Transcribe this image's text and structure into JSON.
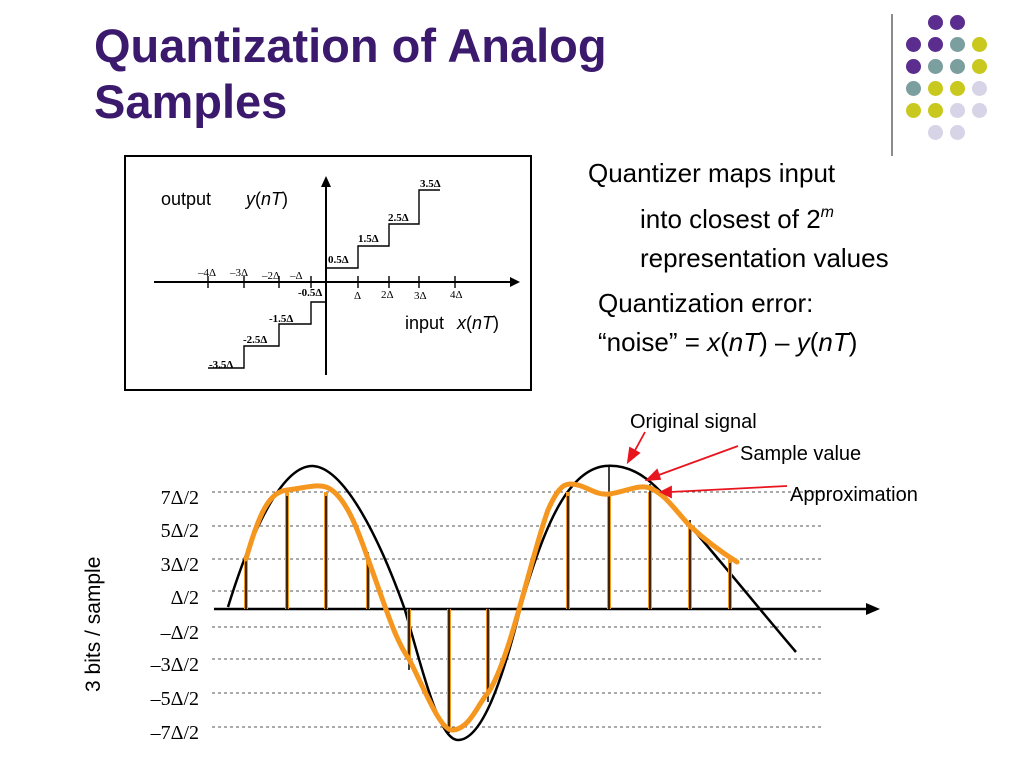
{
  "slide": {
    "title_line1": "Quantization of Analog",
    "title_line2": "Samples"
  },
  "decoration": {
    "dot_colors": {
      "purple": "#5b2d8e",
      "teal": "#7b9e9e",
      "yellow": "#c8c81e",
      "lavender": "#d6d4e6"
    }
  },
  "bullets": {
    "b1": {
      "l1": "Quantizer maps input",
      "l2_pre": "into closest of 2",
      "l2_sup": "m",
      "l3": "representation values"
    },
    "b2": {
      "l1": "Quantization error:",
      "l2_a": "“noise” = ",
      "l2_x": "x",
      "l2_b": "(",
      "l2_nt1": "nT",
      "l2_c": ") – ",
      "l2_y": "y",
      "l2_d": "(",
      "l2_nt2": "nT",
      "l2_e": ")"
    }
  },
  "staircase": {
    "output_label": "output",
    "output_var": "y",
    "output_arg": "nT",
    "input_label": "input",
    "input_var": "x",
    "input_arg": "nT",
    "x_ticks_neg": [
      "–4Δ",
      "–3Δ",
      "–2Δ",
      "–Δ"
    ],
    "x_ticks_pos": [
      "Δ",
      "2Δ",
      "3Δ",
      "4Δ"
    ],
    "levels_pos": [
      "0.5Δ",
      "1.5Δ",
      "2.5Δ",
      "3.5Δ"
    ],
    "levels_neg": [
      "-0.5Δ",
      "-1.5Δ",
      "-2.5Δ",
      "-3.5Δ"
    ]
  },
  "waveform": {
    "axis_label": "3 bits / sample",
    "level_labels": [
      "7Δ/2",
      "5Δ/2",
      "3Δ/2",
      "Δ/2",
      "–Δ/2",
      "–3Δ/2",
      "–5Δ/2",
      "–7Δ/2"
    ],
    "annotation_original": "Original signal",
    "annotation_sample": "Sample value",
    "annotation_approx": "Approximation",
    "colors": {
      "signal": "#000000",
      "samples": "#f5961e",
      "arrows": "#e8141e"
    }
  }
}
